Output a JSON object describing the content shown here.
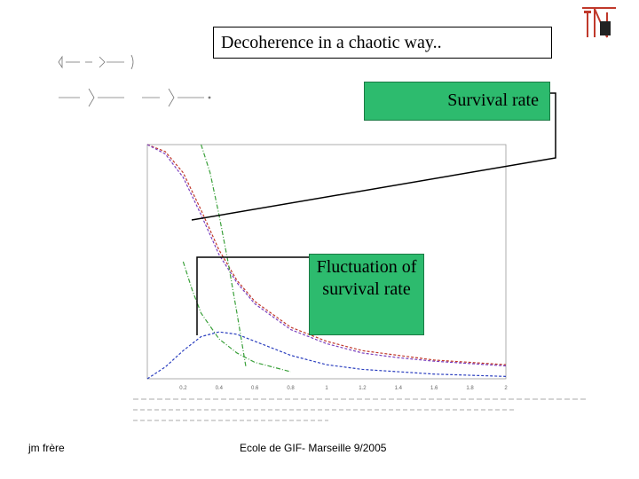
{
  "slide": {
    "title": "Decoherence in a chaotic way..",
    "survival_label": "Survival rate",
    "fluctuation_label": "Fluctuation of survival rate",
    "footer_author": "jm frère",
    "footer_event": "Ecole de GIF- Marseille 9/2005"
  },
  "chart_data": {
    "type": "line",
    "x_tick_labels": [
      "0.2",
      "0.4",
      "0.6",
      "0.8",
      "1",
      "1.2",
      "1.4",
      "1.6",
      "1.8",
      "2"
    ],
    "xlim": [
      0,
      2
    ],
    "series": [
      {
        "color": "#c0392b",
        "style": "dashed",
        "x": [
          0,
          0.1,
          0.2,
          0.3,
          0.4,
          0.5,
          0.6,
          0.8,
          1.0,
          1.2,
          1.4,
          1.6,
          1.8,
          2.0
        ],
        "y": [
          1.0,
          0.97,
          0.88,
          0.72,
          0.55,
          0.42,
          0.33,
          0.22,
          0.16,
          0.12,
          0.1,
          0.08,
          0.07,
          0.06
        ]
      },
      {
        "color": "#7a3fbf",
        "style": "dashed",
        "x": [
          0,
          0.1,
          0.2,
          0.3,
          0.4,
          0.5,
          0.6,
          0.8,
          1.0,
          1.2,
          1.4,
          1.6,
          1.8,
          2.0
        ],
        "y": [
          1.0,
          0.96,
          0.86,
          0.7,
          0.53,
          0.41,
          0.32,
          0.21,
          0.15,
          0.11,
          0.09,
          0.075,
          0.065,
          0.055
        ]
      },
      {
        "color": "#3aa03a",
        "style": "dashdot",
        "x": [
          0.3,
          0.35,
          0.4,
          0.45,
          0.5,
          0.55
        ],
        "y": [
          1.0,
          0.88,
          0.7,
          0.5,
          0.28,
          0.05
        ]
      },
      {
        "color": "#3aa03a",
        "style": "dashdot",
        "x": [
          0.2,
          0.25,
          0.3,
          0.4,
          0.5,
          0.6,
          0.7,
          0.8
        ],
        "y": [
          0.5,
          0.38,
          0.28,
          0.17,
          0.11,
          0.07,
          0.05,
          0.03
        ]
      },
      {
        "color": "#2b3fbf",
        "style": "dashed",
        "x": [
          0,
          0.1,
          0.2,
          0.3,
          0.4,
          0.5,
          0.6,
          0.8,
          1.0,
          1.2,
          1.4,
          1.6,
          1.8,
          2.0
        ],
        "y": [
          0.0,
          0.05,
          0.12,
          0.18,
          0.2,
          0.19,
          0.16,
          0.1,
          0.06,
          0.04,
          0.03,
          0.02,
          0.015,
          0.01
        ]
      }
    ]
  }
}
